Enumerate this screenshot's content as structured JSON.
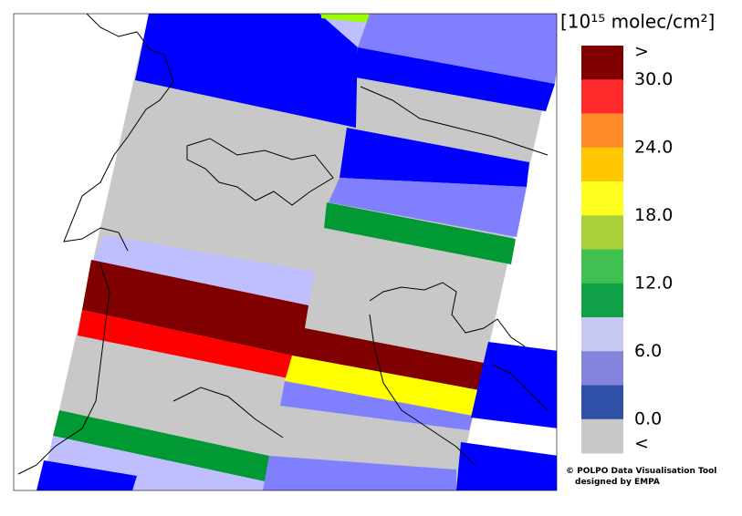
{
  "legend": {
    "title": "[10¹⁵ molec/cm²]",
    "labels": [
      ">",
      "30.0",
      "24.0",
      "18.0",
      "12.0",
      "6.0",
      "0.0",
      "<"
    ],
    "colors": [
      "#800000",
      "#ff2a2a",
      "#ff8a2a",
      "#ffc800",
      "#ffff20",
      "#a8d038",
      "#40c050",
      "#10a048",
      "#c8c8f4",
      "#8484dc",
      "#3050a8",
      "#c8c8c8"
    ]
  },
  "credit": {
    "line1": "© POLPO Data Visualisation Tool",
    "line2": "designed by EMPA"
  }
}
